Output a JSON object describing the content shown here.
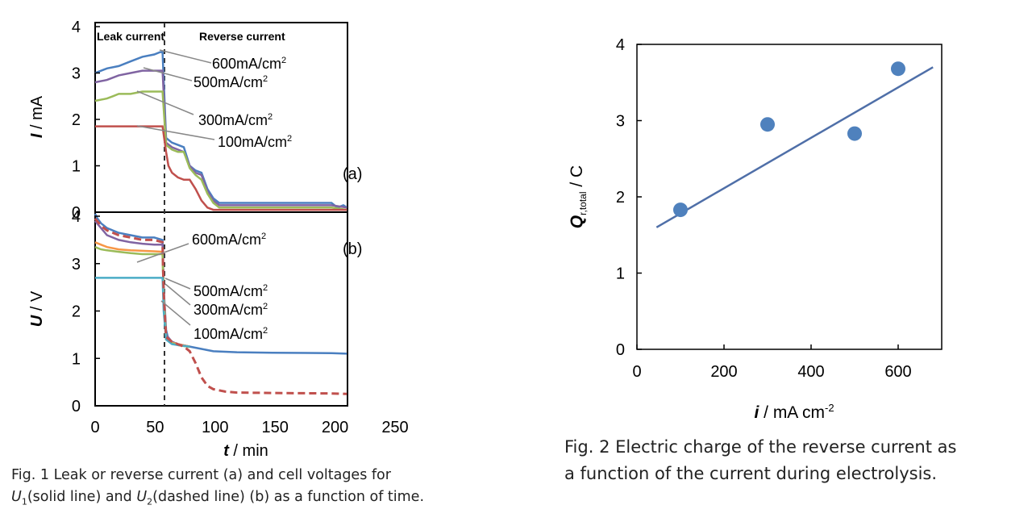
{
  "fig1": {
    "panel_a": {
      "type": "line",
      "ylabel_var": "I",
      "ylabel_unit": "mA",
      "panel_label": "(a)",
      "region_left": "Leak current",
      "region_right": "Reverse current",
      "ylim": [
        0,
        4
      ],
      "yticks": [
        "0",
        "1",
        "2",
        "3",
        "4"
      ],
      "series": [
        {
          "label": "600mA/cm",
          "color": "#4a7fc0",
          "x": [
            0,
            10,
            20,
            30,
            40,
            50,
            55,
            57,
            60,
            65,
            70,
            75,
            80,
            85,
            90,
            95,
            100,
            105,
            110,
            150,
            200,
            205,
            210,
            213
          ],
          "y": [
            3.0,
            3.1,
            3.15,
            3.25,
            3.35,
            3.4,
            3.45,
            3.45,
            1.6,
            1.5,
            1.45,
            1.4,
            1.0,
            0.9,
            0.85,
            0.5,
            0.3,
            0.2,
            0.2,
            0.2,
            0.2,
            0.1,
            0.15,
            0.1
          ]
        },
        {
          "label": "500mA/cm",
          "color": "#8064a2",
          "x": [
            0,
            10,
            20,
            30,
            40,
            50,
            57,
            60,
            65,
            70,
            75,
            80,
            85,
            90,
            95,
            100,
            105,
            110,
            150,
            200,
            213
          ],
          "y": [
            2.8,
            2.85,
            2.95,
            3.0,
            3.05,
            3.05,
            3.05,
            1.5,
            1.4,
            1.35,
            1.3,
            1.0,
            0.85,
            0.8,
            0.45,
            0.25,
            0.15,
            0.15,
            0.15,
            0.15,
            0.1
          ]
        },
        {
          "label": "300mA/cm",
          "color": "#9bbb59",
          "x": [
            0,
            10,
            15,
            20,
            30,
            40,
            50,
            57,
            60,
            65,
            70,
            75,
            80,
            85,
            90,
            95,
            100,
            105,
            110,
            150,
            200,
            213
          ],
          "y": [
            2.4,
            2.45,
            2.5,
            2.55,
            2.55,
            2.6,
            2.6,
            2.6,
            1.45,
            1.35,
            1.3,
            1.3,
            0.95,
            0.8,
            0.7,
            0.4,
            0.2,
            0.1,
            0.1,
            0.1,
            0.1,
            0.05
          ]
        },
        {
          "label": "100mA/cm",
          "color": "#c0504d",
          "x": [
            0,
            20,
            40,
            57,
            60,
            62,
            65,
            70,
            75,
            80,
            85,
            90,
            95,
            100,
            105,
            213
          ],
          "y": [
            1.85,
            1.85,
            1.85,
            1.85,
            1.3,
            1.0,
            0.85,
            0.75,
            0.7,
            0.7,
            0.5,
            0.25,
            0.1,
            0.05,
            0.05,
            0.05
          ]
        }
      ],
      "callouts": [
        {
          "text": "600mA/cm",
          "sup": "2"
        },
        {
          "text": "500mA/cm",
          "sup": "2"
        },
        {
          "text": "300mA/cm",
          "sup": "2"
        },
        {
          "text": "100mA/cm",
          "sup": "2"
        }
      ]
    },
    "panel_b": {
      "type": "line",
      "ylabel_var": "U",
      "ylabel_unit": "V",
      "panel_label": "(b)",
      "ylim": [
        0,
        4
      ],
      "yticks": [
        "0",
        "1",
        "2",
        "3",
        "4"
      ],
      "xlim": [
        0,
        250
      ],
      "xticks": [
        "0",
        "50",
        "100",
        "150",
        "200",
        "250"
      ],
      "xlabel_var": "t",
      "xlabel_unit": "min",
      "series": [
        {
          "label": "600mA/cm",
          "color": "#4a7fc0",
          "x": [
            0,
            2,
            5,
            10,
            20,
            30,
            40,
            50,
            57,
            58,
            60,
            62,
            65,
            70,
            80,
            90,
            100,
            120,
            150,
            200,
            213
          ],
          "y": [
            4.05,
            3.95,
            3.85,
            3.75,
            3.65,
            3.6,
            3.55,
            3.55,
            3.5,
            2.5,
            1.6,
            1.4,
            1.35,
            1.3,
            1.25,
            1.2,
            1.15,
            1.13,
            1.12,
            1.11,
            1.1
          ]
        },
        {
          "label": "500mA/cm",
          "color": "#8064a2",
          "x": [
            0,
            5,
            10,
            20,
            30,
            40,
            50,
            57,
            58,
            60,
            65,
            70,
            80
          ],
          "y": [
            3.9,
            3.75,
            3.6,
            3.5,
            3.45,
            3.42,
            3.4,
            3.4,
            2.4,
            1.5,
            1.35,
            1.3,
            1.25
          ]
        },
        {
          "label": "300mA/cm",
          "color": "#f79646",
          "x": [
            0,
            5,
            10,
            20,
            30,
            40,
            50,
            57,
            58,
            60,
            65,
            70,
            80
          ],
          "y": [
            3.45,
            3.4,
            3.35,
            3.3,
            3.28,
            3.27,
            3.26,
            3.25,
            2.3,
            1.45,
            1.33,
            1.3,
            1.25
          ]
        },
        {
          "label": "300mA/cm",
          "color": "#9bbb59",
          "x": [
            0,
            5,
            10,
            20,
            30,
            40,
            50,
            57,
            58,
            60,
            65,
            70,
            80
          ],
          "y": [
            3.35,
            3.3,
            3.28,
            3.25,
            3.22,
            3.2,
            3.2,
            3.2,
            2.2,
            1.4,
            1.32,
            1.28,
            1.24
          ]
        },
        {
          "label": "100mA/cm",
          "color": "#4bacc6",
          "x": [
            0,
            10,
            20,
            30,
            40,
            50,
            57,
            58,
            60,
            65,
            70,
            80
          ],
          "y": [
            2.7,
            2.7,
            2.7,
            2.7,
            2.7,
            2.7,
            2.7,
            2.0,
            1.4,
            1.3,
            1.28,
            1.25
          ]
        },
        {
          "label": "U2",
          "color": "#c0504d",
          "dashed": true,
          "x": [
            0,
            5,
            10,
            20,
            30,
            40,
            50,
            57,
            58,
            60,
            65,
            70,
            75,
            80,
            85,
            90,
            95,
            100,
            110,
            120,
            150,
            200,
            213
          ],
          "y": [
            3.95,
            3.8,
            3.7,
            3.6,
            3.55,
            3.5,
            3.5,
            3.45,
            2.4,
            1.45,
            1.35,
            1.3,
            1.25,
            1.15,
            0.9,
            0.6,
            0.42,
            0.35,
            0.3,
            0.28,
            0.27,
            0.26,
            0.25
          ]
        }
      ],
      "callouts": [
        {
          "text": "600mA/cm",
          "sup": "2"
        },
        {
          "text": "500mA/cm",
          "sup": "2"
        },
        {
          "text": "300mA/cm",
          "sup": "2"
        },
        {
          "text": "100mA/cm",
          "sup": "2"
        }
      ]
    },
    "caption_line1": "Fig. 1 Leak or reverse current (a) and cell voltages for",
    "caption_line2_parts": [
      "U",
      "1",
      "(solid line) and ",
      "U",
      "2",
      "(dashed line) (b) as a function of time."
    ]
  },
  "chart_data": {
    "type": "scatter",
    "x": [
      100,
      300,
      500,
      600
    ],
    "y": [
      1.83,
      2.95,
      2.83,
      3.68
    ],
    "fit_line": {
      "x": [
        45,
        680
      ],
      "y": [
        1.6,
        3.7
      ]
    },
    "xlim": [
      0,
      700
    ],
    "ylim": [
      0,
      4
    ],
    "xticks": [
      "0",
      "200",
      "400",
      "600"
    ],
    "yticks": [
      "0",
      "1",
      "2",
      "3",
      "4"
    ],
    "xlabel_var": "i",
    "xlabel_unit": "mA cm",
    "xlabel_sup": "-2",
    "ylabel_var": "Q",
    "ylabel_sub": "r,total",
    "ylabel_unit": "C",
    "marker_color": "#4f81bd",
    "line_color": "#4f6fa8"
  },
  "fig2": {
    "caption_line1": "Fig. 2 Electric charge of the reverse current as",
    "caption_line2": "a function of the current during electrolysis."
  }
}
